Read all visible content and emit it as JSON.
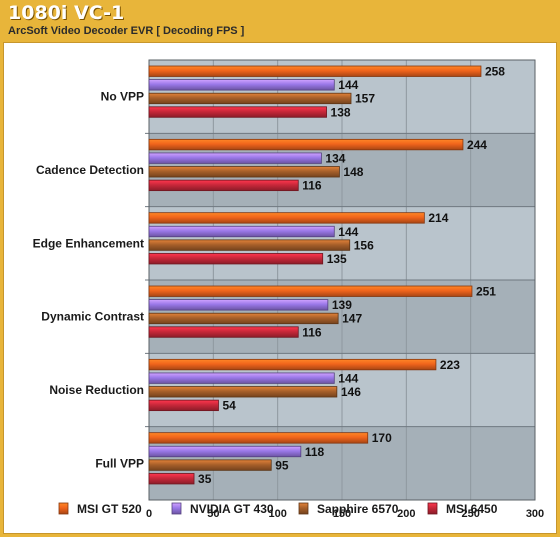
{
  "header": {
    "title": "1080i VC-1",
    "subtitle": "ArcSoft Video Decoder EVR [ Decoding FPS ]"
  },
  "colors": {
    "background": "#e8b53a",
    "band_light": "#b9c4cc",
    "band_dark": "#a5b0b8",
    "series": [
      "#f0641c",
      "#9a78e8",
      "#a8602a",
      "#c8283a"
    ]
  },
  "chart_data": {
    "type": "bar",
    "orientation": "horizontal",
    "title": "1080i VC-1",
    "subtitle": "ArcSoft Video Decoder EVR [ Decoding FPS ]",
    "categories": [
      "No VPP",
      "Cadence Detection",
      "Edge Enhancement",
      "Dynamic Contrast",
      "Noise Reduction",
      "Full VPP"
    ],
    "series": [
      {
        "name": "MSI GT 520",
        "values": [
          258,
          244,
          214,
          251,
          223,
          170
        ]
      },
      {
        "name": "NVIDIA GT 430",
        "values": [
          144,
          134,
          144,
          139,
          144,
          118
        ]
      },
      {
        "name": "Sapphire 6570",
        "values": [
          157,
          148,
          156,
          147,
          146,
          95
        ]
      },
      {
        "name": "MSI 6450",
        "values": [
          138,
          116,
          135,
          116,
          54,
          35
        ]
      }
    ],
    "xlim": [
      0,
      300
    ],
    "xticks": [
      0,
      50,
      100,
      150,
      200,
      250,
      300
    ],
    "xlabel": "",
    "ylabel": "",
    "grid": true,
    "legend_position": "bottom",
    "data_labels": true
  }
}
